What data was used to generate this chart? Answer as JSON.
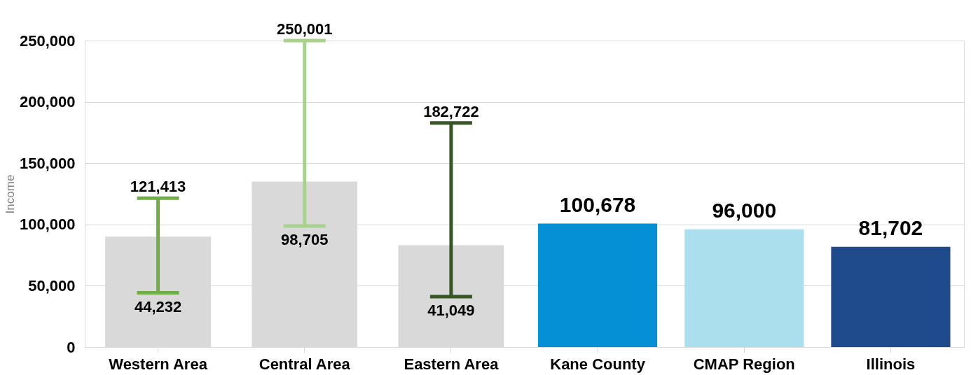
{
  "chart_data": {
    "type": "bar",
    "ylabel": "Income",
    "categories": [
      "Western Area",
      "Central Area",
      "Eastern Area",
      "Kane County",
      "CMAP Region",
      "Illinois"
    ],
    "series": [
      {
        "colors": [
          "#d9d9d9",
          "#d9d9d9",
          "#d9d9d9",
          null,
          null,
          null
        ],
        "values": [
          90000,
          135000,
          83000,
          null,
          null,
          null
        ]
      },
      {
        "colors": [
          null,
          null,
          null,
          "#0590d6",
          "#acdfee",
          "#1f4a8c"
        ],
        "values": [
          null,
          null,
          null,
          100678,
          96000,
          81702
        ],
        "value_labels": [
          null,
          null,
          null,
          "100,678",
          "96,000",
          "81,702"
        ]
      },
      {
        "colors": [
          "#70ad47",
          "#a9d18e",
          "#375623",
          null,
          null,
          null
        ],
        "base": [
          44232,
          98705,
          41049,
          null,
          null,
          null
        ],
        "values": [
          77181,
          151296,
          141673,
          null,
          null,
          null
        ]
      }
    ],
    "annotations": [
      {
        "text": "121,413",
        "x": "Western Area",
        "y": 121413
      },
      {
        "text": "44,232",
        "x": "Western Area",
        "y": 44232
      },
      {
        "text": "250,001",
        "x": "Central Area",
        "y": 250001
      },
      {
        "text": "98,705",
        "x": "Central Area",
        "y": 98705
      },
      {
        "text": "182,722",
        "x": "Eastern Area",
        "y": 182722
      },
      {
        "text": "41,049",
        "x": "Eastern Area",
        "y": 41049
      }
    ],
    "ylim": [
      0,
      250000
    ],
    "yticks": [
      0,
      {
        "value": 50000,
        "label": "50,000"
      },
      {
        "value": 100000,
        "label": "100,000"
      },
      {
        "value": 150000,
        "label": "150,000"
      },
      {
        "value": 200000,
        "label": "200,000"
      },
      {
        "value": 250000,
        "label": "250,000"
      }
    ],
    "grid": "y"
  }
}
